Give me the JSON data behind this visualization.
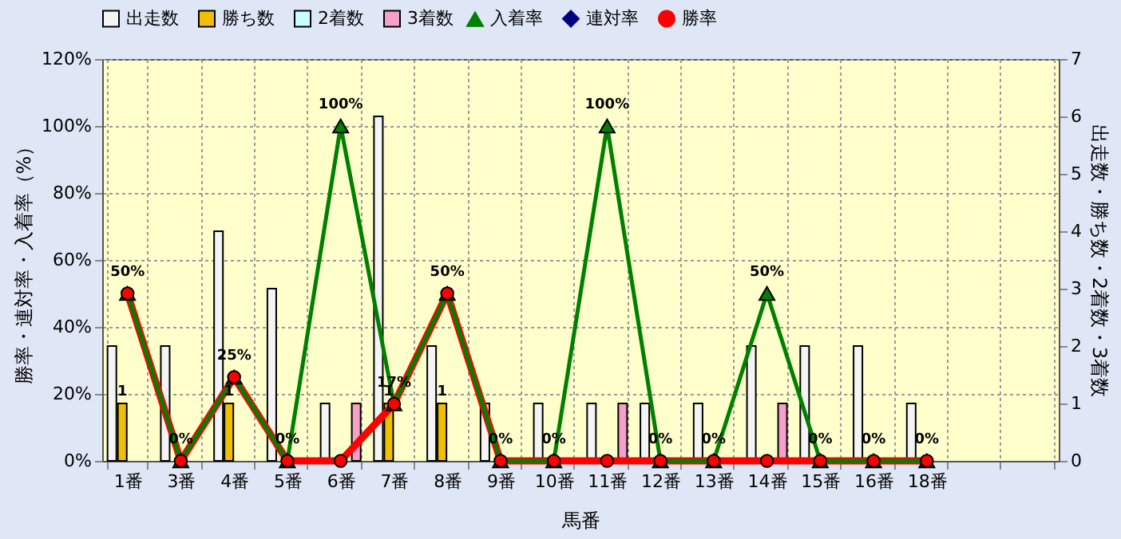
{
  "chart_data": {
    "type": "bar",
    "xlabel": "馬番",
    "ylabel": "勝率・連対率・入着率（%）",
    "y2label": "出走数・勝ち数・2着数・3着数",
    "categories": [
      "1番",
      "3番",
      "4番",
      "5番",
      "6番",
      "7番",
      "8番",
      "9番",
      "10番",
      "11番",
      "12番",
      "13番",
      "14番",
      "15番",
      "16番",
      "18番",
      null,
      null
    ],
    "ylim": [
      0,
      120
    ],
    "yticks": [
      {
        "value": 0,
        "label": "0%"
      },
      {
        "value": 20,
        "label": "20%"
      },
      {
        "value": 40,
        "label": "40%"
      },
      {
        "value": 60,
        "label": "60%"
      },
      {
        "value": 80,
        "label": "80%"
      },
      {
        "value": 100,
        "label": "100%"
      },
      {
        "value": 120,
        "label": "120%"
      }
    ],
    "y2lim": [
      0,
      7
    ],
    "y2ticks": [
      0,
      1,
      2,
      3,
      4,
      5,
      6,
      7
    ],
    "grid": true,
    "legend": "top",
    "series": [
      {
        "name": "出走数",
        "color": "#f4f4f4",
        "axis": "y2",
        "values": [
          2,
          2,
          4,
          3,
          1,
          6,
          2,
          1,
          1,
          1,
          1,
          1,
          2,
          2,
          2,
          1,
          null,
          null
        ]
      },
      {
        "name": "勝ち数",
        "color": "#f0c000",
        "axis": "y2",
        "values": [
          1,
          0,
          1,
          0,
          0,
          1,
          1,
          0,
          0,
          0,
          0,
          0,
          0,
          0,
          0,
          0,
          null,
          null
        ],
        "value_labels": [
          "1",
          null,
          "1",
          null,
          null,
          "1",
          "1",
          null,
          null,
          null,
          null,
          null,
          null,
          null,
          null,
          null,
          null,
          null
        ]
      },
      {
        "name": "2着数",
        "color": "#c8ffff",
        "axis": "y2",
        "values": [
          0,
          0,
          0,
          0,
          0,
          0,
          0,
          0,
          0,
          0,
          0,
          0,
          0,
          0,
          0,
          0,
          null,
          null
        ]
      },
      {
        "name": "3着数",
        "color": "#f4a0c8",
        "axis": "y2",
        "values": [
          0,
          0,
          0,
          0,
          1,
          0,
          0,
          0,
          0,
          1,
          0,
          0,
          1,
          0,
          0,
          0,
          null,
          null
        ]
      },
      {
        "name": "入着率",
        "type": "line",
        "marker": "triangle",
        "color": "#008000",
        "values": [
          50,
          0,
          25,
          0,
          100,
          17,
          50,
          0,
          0,
          100,
          0,
          0,
          50,
          0,
          0,
          0,
          null,
          null
        ],
        "value_labels": [
          "50%",
          "0%",
          "25%",
          "0%",
          "100%",
          "17%",
          "50%",
          "0%",
          "0%",
          "100%",
          "0%",
          "0%",
          "50%",
          "0%",
          "0%",
          "0%",
          null,
          null
        ]
      },
      {
        "name": "連対率",
        "type": "line",
        "marker": "diamond",
        "color": "#000080",
        "values": [
          null,
          null,
          null,
          null,
          null,
          null,
          null,
          null,
          null,
          null,
          null,
          null,
          null,
          null,
          null,
          null,
          null,
          null
        ]
      },
      {
        "name": "勝率",
        "type": "line",
        "marker": "circle",
        "color": "#ff0000",
        "values": [
          50,
          0,
          25,
          0,
          0,
          17,
          50,
          0,
          0,
          0,
          0,
          0,
          0,
          0,
          0,
          0,
          null,
          null
        ]
      }
    ]
  }
}
